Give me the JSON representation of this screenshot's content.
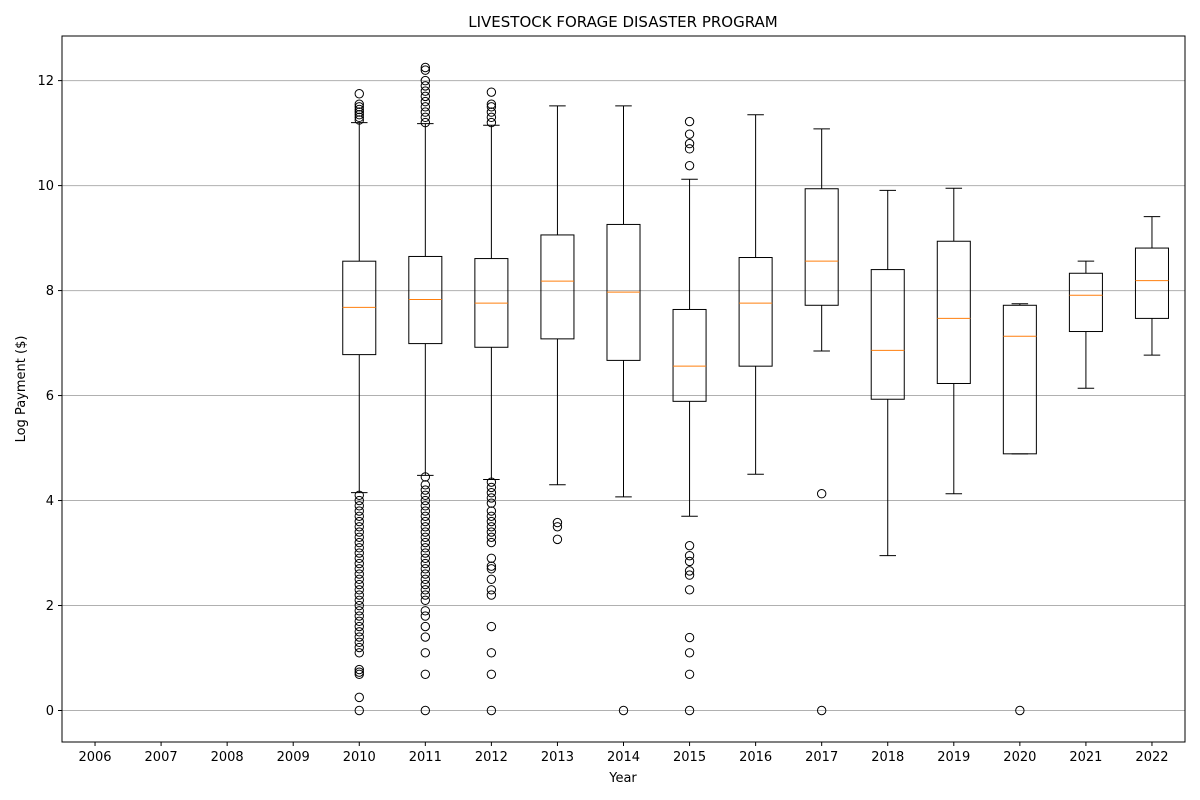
{
  "chart_data": {
    "type": "box",
    "title": "LIVESTOCK FORAGE DISASTER PROGRAM",
    "xlabel": "Year",
    "ylabel": "Log Payment ($)",
    "categories": [
      "2006",
      "2007",
      "2008",
      "2009",
      "2010",
      "2011",
      "2012",
      "2013",
      "2014",
      "2015",
      "2016",
      "2017",
      "2018",
      "2019",
      "2020",
      "2021",
      "2022"
    ],
    "yticks": [
      0,
      2,
      4,
      6,
      8,
      10,
      12
    ],
    "ylim": [
      -0.6,
      12.85
    ],
    "grid": "y",
    "colors": {
      "box": "#000000",
      "median": "#ff7f0e",
      "grid": "#b0b0b0",
      "axis": "#000000"
    },
    "boxes": [
      {
        "year": "2010",
        "whisker_low": 4.15,
        "q1": 6.78,
        "median": 7.68,
        "q3": 8.56,
        "whisker_high": 11.2,
        "outliers": [
          11.25,
          11.3,
          11.35,
          11.4,
          11.45,
          11.5,
          11.55,
          11.75,
          4.1,
          4.0,
          3.9,
          3.8,
          3.7,
          3.6,
          3.5,
          3.4,
          3.3,
          3.2,
          3.1,
          3.0,
          2.9,
          2.8,
          2.7,
          2.6,
          2.5,
          2.4,
          2.3,
          2.2,
          2.1,
          2.0,
          1.9,
          1.8,
          1.7,
          1.6,
          1.5,
          1.4,
          1.3,
          1.2,
          1.1,
          0.78,
          0.73,
          0.69,
          0.25,
          0.0
        ]
      },
      {
        "year": "2011",
        "whisker_low": 4.48,
        "q1": 6.99,
        "median": 7.83,
        "q3": 8.65,
        "whisker_high": 11.18,
        "outliers": [
          11.2,
          11.3,
          11.4,
          11.5,
          11.6,
          11.7,
          11.8,
          11.9,
          12.0,
          12.2,
          12.25,
          4.45,
          4.3,
          4.2,
          4.1,
          4.0,
          3.9,
          3.8,
          3.7,
          3.6,
          3.5,
          3.4,
          3.3,
          3.2,
          3.1,
          3.0,
          2.9,
          2.8,
          2.7,
          2.6,
          2.5,
          2.4,
          2.3,
          2.2,
          2.1,
          1.9,
          1.8,
          1.6,
          1.4,
          1.1,
          0.69,
          0.0
        ]
      },
      {
        "year": "2012",
        "whisker_low": 4.4,
        "q1": 6.92,
        "median": 7.76,
        "q3": 8.61,
        "whisker_high": 11.15,
        "outliers": [
          11.2,
          11.3,
          11.4,
          11.5,
          11.55,
          11.78,
          4.35,
          4.25,
          4.15,
          4.05,
          3.95,
          3.8,
          3.7,
          3.6,
          3.5,
          3.4,
          3.3,
          3.2,
          2.9,
          2.75,
          2.7,
          2.5,
          2.3,
          2.2,
          1.6,
          1.1,
          0.69,
          0.0
        ]
      },
      {
        "year": "2013",
        "whisker_low": 4.3,
        "q1": 7.08,
        "median": 8.18,
        "q3": 9.06,
        "whisker_high": 11.52,
        "outliers": [
          3.58,
          3.5,
          3.26
        ]
      },
      {
        "year": "2014",
        "whisker_low": 4.07,
        "q1": 6.67,
        "median": 7.97,
        "q3": 9.26,
        "whisker_high": 11.52,
        "outliers": [
          0.0
        ]
      },
      {
        "year": "2015",
        "whisker_low": 3.7,
        "q1": 5.89,
        "median": 6.56,
        "q3": 7.64,
        "whisker_high": 10.12,
        "outliers": [
          11.22,
          10.98,
          10.8,
          10.7,
          10.38,
          3.14,
          2.95,
          2.84,
          2.66,
          2.58,
          2.3,
          1.39,
          1.1,
          0.69,
          0.0
        ]
      },
      {
        "year": "2016",
        "whisker_low": 4.5,
        "q1": 6.56,
        "median": 7.76,
        "q3": 8.63,
        "whisker_high": 11.35,
        "outliers": []
      },
      {
        "year": "2017",
        "whisker_low": 6.85,
        "q1": 7.72,
        "median": 8.56,
        "q3": 9.94,
        "whisker_high": 11.08,
        "outliers": [
          4.13,
          0.0
        ]
      },
      {
        "year": "2018",
        "whisker_low": 2.95,
        "q1": 5.93,
        "median": 6.86,
        "q3": 8.4,
        "whisker_high": 9.91,
        "outliers": []
      },
      {
        "year": "2019",
        "whisker_low": 4.13,
        "q1": 6.23,
        "median": 7.47,
        "q3": 8.94,
        "whisker_high": 9.95,
        "outliers": []
      },
      {
        "year": "2020",
        "whisker_low": 4.89,
        "q1": 4.89,
        "median": 7.13,
        "q3": 7.72,
        "whisker_high": 7.75,
        "outliers": [
          0.0
        ]
      },
      {
        "year": "2021",
        "whisker_low": 6.14,
        "q1": 7.22,
        "median": 7.91,
        "q3": 8.33,
        "whisker_high": 8.56,
        "outliers": []
      },
      {
        "year": "2022",
        "whisker_low": 6.77,
        "q1": 7.47,
        "median": 8.19,
        "q3": 8.81,
        "whisker_high": 9.41,
        "outliers": []
      }
    ]
  }
}
